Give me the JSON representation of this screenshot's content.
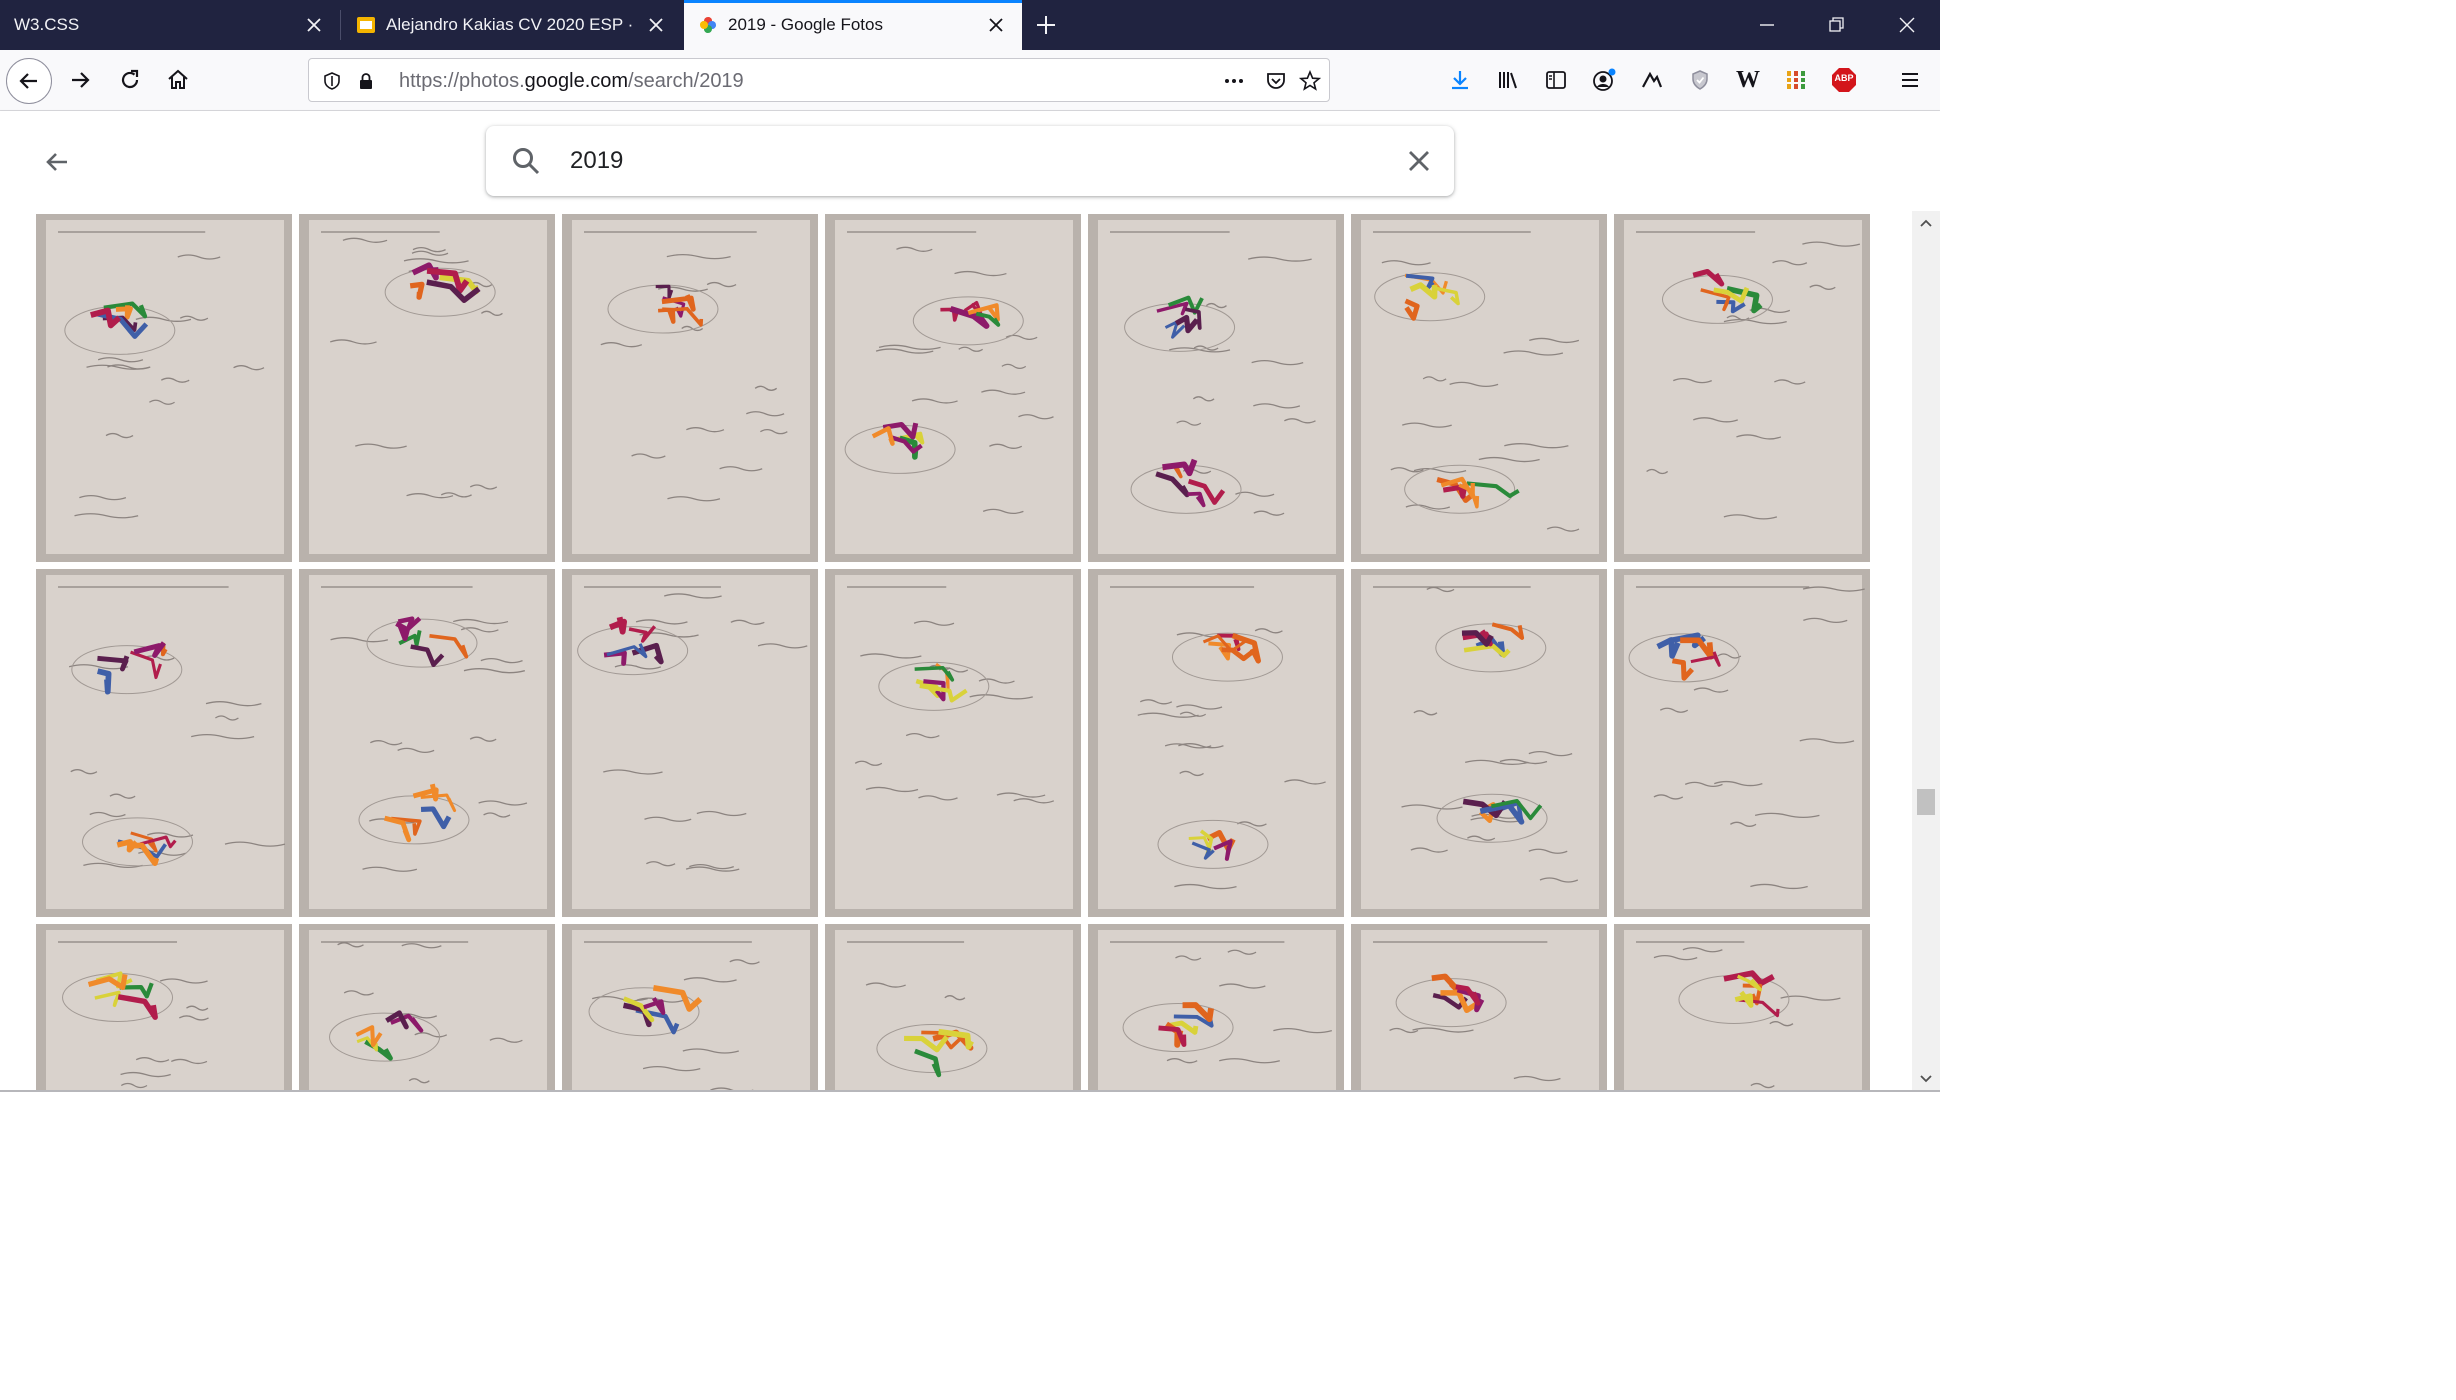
{
  "browser": {
    "tabs": [
      {
        "title": "W3.CSS",
        "active": false,
        "favicon": "none"
      },
      {
        "title": "Alejandro Kakias CV 2020 ESP ·",
        "active": false,
        "favicon": "slides-icon"
      },
      {
        "title": "2019 - Google Fotos",
        "active": true,
        "favicon": "google-photos-icon"
      }
    ],
    "url_prefix": "https://photos.",
    "url_domain": "google.com",
    "url_path": "/search/2019",
    "toolbar_icons": [
      "download-icon",
      "library-icon",
      "sidebar-icon",
      "account-icon",
      "extension-icon",
      "shield-icon",
      "wikipedia-icon",
      "grid-extension-icon",
      "adblock-icon",
      "menu-icon"
    ],
    "adblock_label": "ABP",
    "wiki_label": "W"
  },
  "photos": {
    "search_query": "2019"
  },
  "grid": {
    "rows": 3,
    "columns": 7,
    "tile_type": "sketchbook-photo"
  },
  "colors": {
    "accent": "#0a84ff",
    "tabbar": "#202340",
    "paper": "#d9d2cc",
    "adblock": "#d3151b"
  }
}
